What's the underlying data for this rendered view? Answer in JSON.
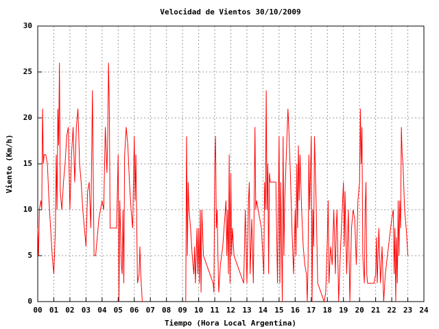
{
  "chart_data": {
    "type": "line",
    "title": "Velocidad de Vientos 30/10/2009",
    "x_label": "Tiempo (Hora Local Argentina)",
    "y_label": "Viento (Km/h)",
    "xlim": [
      0,
      24
    ],
    "ylim": [
      0,
      30
    ],
    "grid": true,
    "xticks": [
      {
        "value": 0,
        "label": "00"
      },
      {
        "value": 1,
        "label": "01"
      },
      {
        "value": 2,
        "label": "02"
      },
      {
        "value": 3,
        "label": "03"
      },
      {
        "value": 4,
        "label": "04"
      },
      {
        "value": 5,
        "label": "05"
      },
      {
        "value": 6,
        "label": "06"
      },
      {
        "value": 7,
        "label": "07"
      },
      {
        "value": 8,
        "label": "08"
      },
      {
        "value": 9,
        "label": "09"
      },
      10,
      11,
      12,
      13,
      14,
      15,
      16,
      17,
      18,
      19,
      20,
      21,
      22,
      23,
      24
    ],
    "yticks": [
      0,
      5,
      10,
      15,
      20,
      25,
      30
    ],
    "x": [
      0.0,
      0.05,
      0.1,
      0.2,
      0.25,
      0.3,
      0.35,
      0.4,
      0.5,
      0.6,
      0.7,
      0.8,
      0.9,
      1.0,
      1.1,
      1.15,
      1.2,
      1.25,
      1.3,
      1.35,
      1.4,
      1.5,
      1.6,
      1.7,
      1.8,
      1.9,
      2.0,
      2.1,
      2.2,
      2.3,
      2.4,
      2.5,
      2.6,
      2.7,
      2.8,
      2.9,
      3.0,
      3.1,
      3.2,
      3.3,
      3.4,
      3.5,
      3.6,
      3.7,
      3.8,
      3.9,
      4.0,
      4.1,
      4.2,
      4.3,
      4.35,
      4.4,
      4.45,
      4.5,
      4.6,
      4.7,
      4.8,
      4.9,
      5.0,
      5.05,
      5.1,
      5.2,
      5.25,
      5.3,
      5.35,
      5.4,
      5.5,
      5.6,
      5.7,
      5.8,
      5.9,
      6.0,
      6.05,
      6.1,
      6.2,
      6.3,
      6.35,
      6.4,
      6.5,
      7.9,
      9.2,
      9.25,
      9.3,
      9.35,
      9.4,
      9.5,
      9.6,
      9.7,
      9.75,
      9.8,
      9.85,
      9.9,
      9.95,
      10.0,
      10.05,
      10.1,
      10.15,
      10.2,
      10.3,
      10.5,
      10.7,
      10.9,
      10.95,
      11.0,
      11.05,
      11.1,
      11.15,
      11.2,
      11.25,
      11.35,
      11.5,
      11.7,
      11.75,
      11.8,
      11.85,
      11.9,
      11.95,
      12.0,
      12.05,
      12.1,
      12.2,
      12.4,
      12.6,
      12.8,
      12.9,
      13.0,
      13.1,
      13.15,
      13.2,
      13.3,
      13.4,
      13.5,
      13.55,
      13.6,
      13.7,
      13.9,
      14.05,
      14.1,
      14.15,
      14.2,
      14.25,
      14.3,
      14.35,
      14.4,
      14.45,
      14.6,
      14.8,
      14.9,
      15.0,
      15.05,
      15.1,
      15.2,
      15.25,
      15.3,
      15.35,
      15.45,
      15.55,
      15.6,
      15.7,
      15.8,
      15.9,
      16.0,
      16.05,
      16.1,
      16.15,
      16.2,
      16.25,
      16.3,
      16.4,
      16.5,
      16.6,
      16.7,
      16.75,
      16.8,
      16.85,
      16.9,
      17.0,
      17.05,
      17.1,
      17.15,
      17.2,
      17.3,
      17.4,
      17.6,
      17.8,
      17.9,
      18.0,
      18.05,
      18.1,
      18.2,
      18.3,
      18.4,
      18.5,
      18.55,
      18.6,
      18.7,
      18.8,
      18.9,
      19.0,
      19.05,
      19.1,
      19.2,
      19.3,
      19.4,
      19.5,
      19.6,
      19.7,
      19.8,
      19.9,
      20.0,
      20.05,
      20.1,
      20.15,
      20.2,
      20.3,
      20.35,
      20.4,
      20.45,
      20.5,
      20.7,
      20.9,
      21.0,
      21.05,
      21.1,
      21.2,
      21.25,
      21.3,
      21.4,
      21.5,
      21.6,
      21.8,
      22.0,
      22.1,
      22.15,
      22.2,
      22.25,
      22.3,
      22.35,
      22.4,
      22.45,
      22.5,
      22.55,
      22.6,
      22.65,
      22.7,
      22.8,
      22.9,
      23.0
    ],
    "series": [
      {
        "color": "#ff0000",
        "values": [
          8,
          5,
          10,
          11,
          10,
          21,
          15,
          16,
          16,
          15,
          11,
          8,
          5,
          3,
          8,
          16,
          10,
          21,
          17,
          26,
          12,
          10,
          13,
          15,
          18,
          19,
          10,
          16,
          19,
          13,
          19,
          21,
          15,
          13,
          10,
          8,
          6,
          12,
          13,
          8,
          23,
          5,
          5,
          7,
          9,
          10,
          11,
          10,
          19,
          14,
          18,
          26,
          21,
          8,
          8,
          8,
          8,
          8,
          16,
          0,
          11,
          4,
          3,
          10,
          2,
          16,
          19,
          17,
          13,
          10,
          8,
          18,
          11,
          16,
          2,
          3,
          6,
          3,
          0,
          null,
          0,
          18,
          5,
          13,
          10,
          8,
          5,
          3,
          6,
          2,
          5,
          8,
          3,
          8,
          2,
          10,
          1,
          10,
          5,
          4,
          3,
          2,
          1,
          15,
          18,
          8,
          10,
          5,
          1,
          4,
          6,
          11,
          5,
          10,
          3,
          16,
          2,
          14,
          5,
          8,
          5,
          4,
          3,
          2,
          10,
          2,
          11,
          13,
          3,
          9,
          2,
          19,
          10,
          11,
          10,
          8,
          3,
          13,
          10,
          23,
          10,
          15,
          3,
          14,
          13,
          13,
          13,
          2,
          18,
          2,
          13,
          0,
          18,
          5,
          11,
          16,
          21,
          19,
          14,
          8,
          3,
          10,
          5,
          15,
          8,
          17,
          11,
          16,
          10,
          6,
          4,
          3,
          0,
          4,
          16,
          10,
          18,
          0,
          10,
          6,
          18,
          11,
          2,
          1,
          0,
          1,
          7,
          11,
          2,
          6,
          4,
          10,
          3,
          8,
          10,
          0,
          5,
          9,
          13,
          6,
          12,
          3,
          10,
          0,
          8,
          10,
          9,
          4,
          11,
          13,
          21,
          15,
          19,
          5,
          2,
          10,
          13,
          3,
          2,
          2,
          2,
          3,
          7,
          2,
          8,
          5,
          2,
          6,
          0,
          3,
          6,
          9,
          10,
          3,
          8,
          0,
          7,
          2,
          11,
          5,
          11,
          8,
          19,
          16,
          15,
          10,
          8,
          5
        ]
      }
    ]
  }
}
